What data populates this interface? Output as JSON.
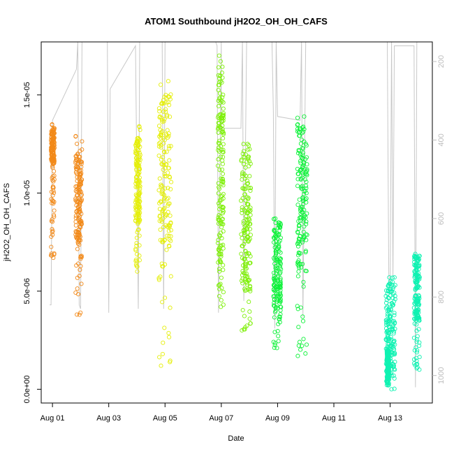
{
  "chart_data": {
    "type": "scatter",
    "title": "ATOM1 Southbound jH2O2_OH_OH_CAFS",
    "xlabel": "Date",
    "ylabel": "jH2O2_OH_OH_CAFS",
    "x_unit": "days, 0 = Aug 01",
    "xlim": [
      -0.4,
      13.5
    ],
    "ylim": [
      -7e-07,
      1.77e-05
    ],
    "x_ticks": [
      0,
      2,
      4,
      6,
      8,
      10,
      12
    ],
    "x_tick_labels": [
      "Aug 01",
      "Aug 03",
      "Aug 05",
      "Aug 07",
      "Aug 09",
      "Aug 11",
      "Aug 13"
    ],
    "y_ticks": [
      0,
      5e-06,
      1e-05,
      1.5e-05
    ],
    "y_tick_labels": [
      "0.0e+00",
      "5.0e-06",
      "1.0e-05",
      "1.5e-05"
    ],
    "right_axis": {
      "label": "",
      "ylim_top_to_bottom": [
        150,
        1070
      ],
      "ticks": [
        200,
        400,
        600,
        800,
        1000
      ],
      "tick_labels": [
        "200",
        "400",
        "600",
        "800",
        "1000"
      ],
      "color": "#bdbdbd"
    },
    "grid": false,
    "legend": "none",
    "series": [
      {
        "color": "#f28a1a",
        "segments": [
          {
            "x": [
              -0.05,
              0.07
            ],
            "y": [
              6.7e-06,
              1.35e-05
            ],
            "core": [
              1.15e-05,
              1.33e-05
            ]
          },
          {
            "x": [
              0.82,
              1.05
            ],
            "y": [
              3.8e-06,
              1.29e-05
            ],
            "core": [
              7.5e-06,
              1.2e-05
            ]
          }
        ]
      },
      {
        "color": "#e5ef0a",
        "segments": [
          {
            "x": [
              2.95,
              3.12
            ],
            "y": [
              6e-06,
              1.34e-05
            ],
            "core": [
              8.5e-06,
              1.28e-05
            ]
          },
          {
            "x": [
              3.78,
              4.22
            ],
            "y": [
              1.2e-06,
              1.57e-05
            ],
            "core": [
              7.5e-06,
              1.5e-05
            ]
          }
        ]
      },
      {
        "color": "#7ff00a",
        "segments": [
          {
            "x": [
              5.88,
              6.08
            ],
            "y": [
              4.2e-06,
              1.7e-05
            ],
            "core": [
              6e-06,
              1.6e-05
            ]
          },
          {
            "x": [
              6.7,
              7.05
            ],
            "y": [
              3e-06,
              1.25e-05
            ],
            "core": [
              5e-06,
              1.2e-05
            ]
          }
        ]
      },
      {
        "color": "#0ef23a",
        "segments": [
          {
            "x": [
              7.85,
              8.12
            ],
            "y": [
              2.1e-06,
              8.7e-06
            ],
            "core": [
              4e-06,
              8.5e-06
            ]
          },
          {
            "x": [
              8.7,
              9.05
            ],
            "y": [
              1.7e-06,
              1.39e-05
            ],
            "core": [
              6e-06,
              1.35e-05
            ]
          }
        ]
      },
      {
        "color": "#0ff2b2",
        "segments": [
          {
            "x": [
              11.85,
              12.18
            ],
            "y": [
              0.0,
              5.7e-06
            ],
            "core": [
              1e-06,
              5.5e-06
            ]
          },
          {
            "x": [
              11.88,
              11.96
            ],
            "y": [
              2e-07,
              2.6e-06
            ],
            "core": [
              5e-07,
              2e-06
            ]
          },
          {
            "x": [
              12.85,
              13.05
            ],
            "y": [
              1e-06,
              6.9e-06
            ],
            "core": [
              3.5e-06,
              6.8e-06
            ]
          }
        ]
      }
    ],
    "altitude_trace": {
      "color": "#c8c8c8",
      "points": [
        [
          -0.1,
          820
        ],
        [
          -0.05,
          820
        ],
        [
          0.0,
          350
        ],
        [
          0.85,
          220
        ],
        [
          0.9,
          150
        ],
        [
          0.95,
          820
        ],
        [
          1.0,
          830
        ],
        [
          1.05,
          150
        ],
        [
          1.95,
          150
        ],
        [
          2.0,
          840
        ],
        [
          2.05,
          270
        ],
        [
          2.95,
          160
        ],
        [
          3.05,
          830
        ],
        [
          3.1,
          150
        ],
        [
          3.9,
          150
        ],
        [
          3.95,
          830
        ],
        [
          4.0,
          150
        ],
        [
          4.2,
          150
        ],
        [
          5.0,
          150
        ],
        [
          5.8,
          150
        ],
        [
          5.85,
          160
        ],
        [
          5.9,
          840
        ],
        [
          6.0,
          150
        ],
        [
          6.0,
          370
        ],
        [
          6.7,
          370
        ],
        [
          6.75,
          150
        ],
        [
          6.8,
          810
        ],
        [
          6.9,
          150
        ],
        [
          7.8,
          150
        ],
        [
          7.85,
          330
        ],
        [
          7.9,
          880
        ],
        [
          7.95,
          150
        ],
        [
          8.0,
          340
        ],
        [
          8.8,
          350
        ],
        [
          8.85,
          150
        ],
        [
          8.9,
          850
        ],
        [
          9.0,
          150
        ],
        [
          9.5,
          150
        ],
        [
          10.5,
          150
        ],
        [
          11.5,
          150
        ],
        [
          11.9,
          150
        ],
        [
          11.95,
          740
        ],
        [
          12.0,
          780
        ],
        [
          12.05,
          150
        ],
        [
          12.1,
          750
        ],
        [
          12.15,
          160
        ],
        [
          12.85,
          160
        ],
        [
          12.9,
          1030
        ],
        [
          12.95,
          150
        ],
        [
          13.1,
          150
        ]
      ]
    }
  }
}
